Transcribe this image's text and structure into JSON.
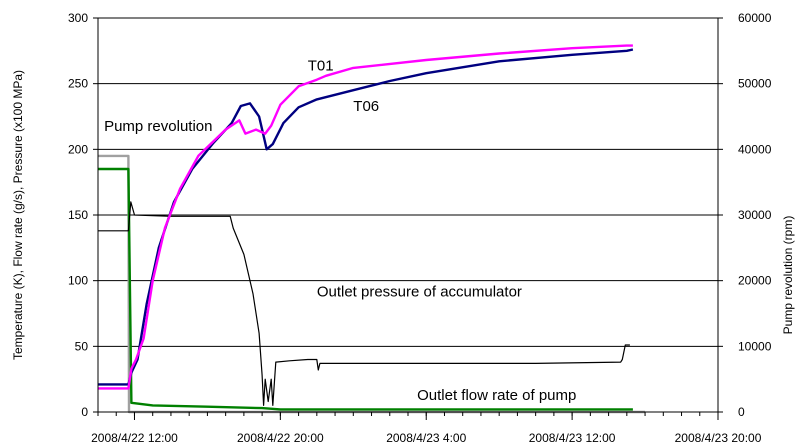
{
  "chart_data": {
    "type": "line",
    "title": "",
    "xlabel": "",
    "ylabel": "Temperature (K), Flow rate (g/s), Pressure (x100 MPa)",
    "y2label": "Pump revolution (rpm)",
    "xlim": [
      "2008/4/22 12:00",
      "2008/4/23 20:00"
    ],
    "ylim": [
      0,
      300
    ],
    "y2lim": [
      0,
      60000
    ],
    "xtick_labels": [
      "2008/4/22 12:00",
      "2008/4/22 20:00",
      "2008/4/23 4:00",
      "2008/4/23 12:00",
      "2008/4/23 20:00"
    ],
    "ytick_labels": [
      "0",
      "50",
      "100",
      "150",
      "200",
      "250",
      "300"
    ],
    "y2tick_labels": [
      "0",
      "10000",
      "20000",
      "30000",
      "40000",
      "50000",
      "60000"
    ],
    "grid": "horizontal",
    "legend": "none",
    "annotations": [
      {
        "text": "T01",
        "x": "2008/4/22 21:30",
        "y": 260
      },
      {
        "text": "T06",
        "x": "2008/4/23 0:00",
        "y": 229
      },
      {
        "text": "Pump revolution",
        "x": "2008/4/22 10:20",
        "y": 214
      },
      {
        "text": "Outlet pressure of accumulator",
        "x": "2008/4/22 22:00",
        "y": 88
      },
      {
        "text": "Outlet flow rate of pump",
        "x": "2008/4/23 3:30",
        "y": 9
      }
    ],
    "series": [
      {
        "name": "T01",
        "axis": "left",
        "color": "#ff00ff",
        "points": [
          [
            "2008/4/22 10:00",
            18
          ],
          [
            "2008/4/22 11:40",
            18
          ],
          [
            "2008/4/22 11:50",
            33
          ],
          [
            "2008/4/22 12:05",
            40
          ],
          [
            "2008/4/22 12:30",
            56
          ],
          [
            "2008/4/22 13:00",
            100
          ],
          [
            "2008/4/22 13:40",
            140
          ],
          [
            "2008/4/22 14:30",
            170
          ],
          [
            "2008/4/22 15:30",
            195
          ],
          [
            "2008/4/22 17:00",
            215
          ],
          [
            "2008/4/22 17:45",
            222
          ],
          [
            "2008/4/22 18:05",
            212
          ],
          [
            "2008/4/22 18:40",
            215
          ],
          [
            "2008/4/22 19:10",
            212
          ],
          [
            "2008/4/22 19:30",
            218
          ],
          [
            "2008/4/22 20:00",
            234
          ],
          [
            "2008/4/22 21:00",
            248
          ],
          [
            "2008/4/22 22:00",
            253
          ],
          [
            "2008/4/22 22:30",
            256
          ],
          [
            "2008/4/23 0:00",
            262
          ],
          [
            "2008/4/23 4:00",
            268
          ],
          [
            "2008/4/23 8:00",
            273
          ],
          [
            "2008/4/23 12:00",
            277
          ],
          [
            "2008/4/23 15:00",
            279
          ],
          [
            "2008/4/23 15:20",
            279
          ]
        ]
      },
      {
        "name": "T06",
        "axis": "left",
        "color": "#000080",
        "points": [
          [
            "2008/4/22 10:00",
            21
          ],
          [
            "2008/4/22 11:40",
            21
          ],
          [
            "2008/4/22 11:50",
            30
          ],
          [
            "2008/4/22 12:10",
            40
          ],
          [
            "2008/4/22 12:40",
            82
          ],
          [
            "2008/4/22 13:20",
            125
          ],
          [
            "2008/4/22 14:10",
            160
          ],
          [
            "2008/4/22 15:10",
            185
          ],
          [
            "2008/4/22 16:20",
            205
          ],
          [
            "2008/4/22 17:20",
            220
          ],
          [
            "2008/4/22 17:50",
            233
          ],
          [
            "2008/4/22 18:20",
            235
          ],
          [
            "2008/4/22 18:50",
            225
          ],
          [
            "2008/4/22 19:15",
            200
          ],
          [
            "2008/4/22 19:35",
            204
          ],
          [
            "2008/4/22 20:10",
            220
          ],
          [
            "2008/4/22 21:00",
            232
          ],
          [
            "2008/4/22 22:00",
            238
          ],
          [
            "2008/4/23 0:00",
            245
          ],
          [
            "2008/4/23 2:00",
            252
          ],
          [
            "2008/4/23 4:00",
            258
          ],
          [
            "2008/4/23 8:00",
            267
          ],
          [
            "2008/4/23 12:00",
            272
          ],
          [
            "2008/4/23 15:00",
            275
          ],
          [
            "2008/4/23 15:20",
            276
          ]
        ]
      },
      {
        "name": "Outlet pressure of accumulator",
        "axis": "left",
        "color": "#000000",
        "points": [
          [
            "2008/4/22 10:00",
            138
          ],
          [
            "2008/4/22 11:40",
            138
          ],
          [
            "2008/4/22 11:48",
            160
          ],
          [
            "2008/4/22 12:00",
            150
          ],
          [
            "2008/4/22 14:00",
            149
          ],
          [
            "2008/4/22 16:00",
            149
          ],
          [
            "2008/4/22 17:15",
            149
          ],
          [
            "2008/4/22 17:25",
            140
          ],
          [
            "2008/4/22 18:00",
            120
          ],
          [
            "2008/4/22 18:30",
            90
          ],
          [
            "2008/4/22 18:50",
            60
          ],
          [
            "2008/4/22 19:00",
            28
          ],
          [
            "2008/4/22 19:05",
            5
          ],
          [
            "2008/4/22 19:10",
            25
          ],
          [
            "2008/4/22 19:20",
            8
          ],
          [
            "2008/4/22 19:30",
            25
          ],
          [
            "2008/4/22 19:35",
            5
          ],
          [
            "2008/4/22 19:45",
            38
          ],
          [
            "2008/4/22 20:30",
            39
          ],
          [
            "2008/4/22 21:30",
            40
          ],
          [
            "2008/4/22 22:00",
            40
          ],
          [
            "2008/4/22 22:05",
            32
          ],
          [
            "2008/4/22 22:10",
            37
          ],
          [
            "2008/4/23 4:00",
            37
          ],
          [
            "2008/4/23 10:00",
            37
          ],
          [
            "2008/4/23 14:40",
            38
          ],
          [
            "2008/4/23 14:45",
            40
          ],
          [
            "2008/4/23 14:55",
            51
          ],
          [
            "2008/4/23 15:10",
            51
          ]
        ]
      },
      {
        "name": "Outlet flow rate of pump",
        "axis": "left",
        "color": "#008000",
        "points": [
          [
            "2008/4/22 10:00",
            185
          ],
          [
            "2008/4/22 11:40",
            185
          ],
          [
            "2008/4/22 11:50",
            7
          ],
          [
            "2008/4/22 13:00",
            5
          ],
          [
            "2008/4/22 16:00",
            4
          ],
          [
            "2008/4/22 19:00",
            3
          ],
          [
            "2008/4/22 20:00",
            2
          ],
          [
            "2008/4/23 4:00",
            2
          ],
          [
            "2008/4/23 15:20",
            2
          ]
        ]
      },
      {
        "name": "Pump revolution",
        "axis": "right",
        "color": "#a0a0a0",
        "points": [
          [
            "2008/4/22 10:00",
            39000
          ],
          [
            "2008/4/22 11:40",
            39000
          ],
          [
            "2008/4/22 11:42",
            0
          ],
          [
            "2008/4/23 16:00",
            0
          ]
        ]
      }
    ]
  }
}
